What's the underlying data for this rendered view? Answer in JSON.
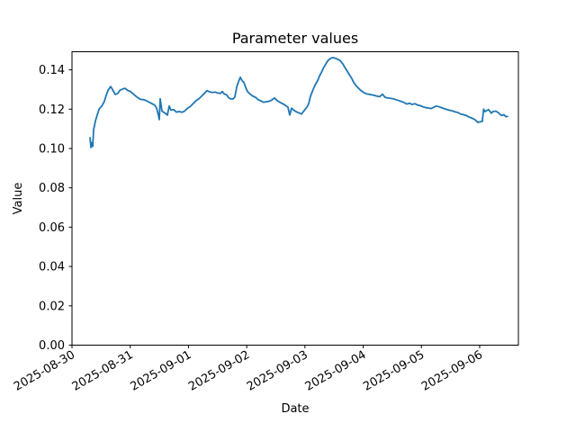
{
  "chart_data": {
    "type": "line",
    "title": "Parameter values",
    "xlabel": "Date",
    "ylabel": "Value",
    "x_tick_labels": [
      "2025-08-30",
      "2025-08-31",
      "2025-09-01",
      "2025-09-02",
      "2025-09-03",
      "2025-09-04",
      "2025-09-05",
      "2025-09-06"
    ],
    "x_tick_positions_days": [
      0,
      1,
      2,
      3,
      4,
      5,
      6,
      7
    ],
    "x_tick_rotation_deg": 30,
    "y_tick_labels": [
      "0.00",
      "0.02",
      "0.04",
      "0.06",
      "0.08",
      "0.10",
      "0.12",
      "0.14"
    ],
    "y_tick_values": [
      0.0,
      0.02,
      0.04,
      0.06,
      0.08,
      0.1,
      0.12,
      0.14
    ],
    "xlim_days": [
      0,
      7.665
    ],
    "ylim": [
      0,
      0.1492
    ],
    "x_unit": "days since 2025-08-30 00:00",
    "grid": false,
    "legend": "none",
    "line_color": "#1f77b4",
    "background_color": "#ffffff",
    "series": [
      {
        "name": "parameter-values",
        "x_days": [
          0.31,
          0.325,
          0.34,
          0.356,
          0.371,
          0.402,
          0.433,
          0.464,
          0.51,
          0.556,
          0.587,
          0.618,
          0.664,
          0.695,
          0.742,
          0.788,
          0.819,
          0.865,
          0.912,
          0.958,
          1.004,
          1.051,
          1.113,
          1.174,
          1.236,
          1.283,
          1.329,
          1.375,
          1.422,
          1.453,
          1.483,
          1.499,
          1.514,
          1.545,
          1.576,
          1.607,
          1.638,
          1.669,
          1.7,
          1.746,
          1.792,
          1.839,
          1.885,
          1.932,
          1.978,
          2.04,
          2.086,
          2.133,
          2.179,
          2.225,
          2.272,
          2.318,
          2.364,
          2.411,
          2.457,
          2.503,
          2.55,
          2.581,
          2.612,
          2.658,
          2.689,
          2.72,
          2.766,
          2.797,
          2.828,
          2.859,
          2.89,
          2.921,
          2.952,
          2.983,
          3.013,
          3.06,
          3.106,
          3.152,
          3.199,
          3.245,
          3.291,
          3.338,
          3.384,
          3.43,
          3.477,
          3.523,
          3.569,
          3.616,
          3.662,
          3.708,
          3.739,
          3.77,
          3.817,
          3.863,
          3.909,
          3.94,
          3.987,
          4.033,
          4.064,
          4.095,
          4.141,
          4.172,
          4.218,
          4.249,
          4.296,
          4.326,
          4.373,
          4.404,
          4.45,
          4.481,
          4.527,
          4.574,
          4.605,
          4.651,
          4.682,
          4.728,
          4.759,
          4.806,
          4.837,
          4.883,
          4.914,
          4.96,
          5.007,
          5.053,
          5.099,
          5.146,
          5.192,
          5.238,
          5.285,
          5.331,
          5.377,
          5.424,
          5.47,
          5.516,
          5.563,
          5.609,
          5.655,
          5.702,
          5.748,
          5.794,
          5.841,
          5.887,
          5.933,
          5.98,
          6.026,
          6.072,
          6.119,
          6.165,
          6.211,
          6.257,
          6.304,
          6.35,
          6.396,
          6.443,
          6.489,
          6.535,
          6.582,
          6.628,
          6.674,
          6.721,
          6.767,
          6.813,
          6.86,
          6.906,
          6.937,
          6.968,
          7.014,
          7.045,
          7.068,
          7.091,
          7.122,
          7.153,
          7.199,
          7.23,
          7.277,
          7.323,
          7.354,
          7.385,
          7.416,
          7.447,
          7.478
        ],
        "values": [
          0.1055,
          0.1005,
          0.103,
          0.101,
          0.1095,
          0.114,
          0.117,
          0.12,
          0.1215,
          0.124,
          0.127,
          0.1295,
          0.1315,
          0.13,
          0.1275,
          0.128,
          0.1295,
          0.1302,
          0.1306,
          0.1295,
          0.129,
          0.1278,
          0.1262,
          0.125,
          0.1248,
          0.1242,
          0.1235,
          0.1228,
          0.122,
          0.1205,
          0.117,
          0.1147,
          0.1253,
          0.119,
          0.1184,
          0.1178,
          0.117,
          0.1216,
          0.1195,
          0.1198,
          0.1185,
          0.1188,
          0.1184,
          0.119,
          0.1203,
          0.1216,
          0.123,
          0.1244,
          0.1253,
          0.1266,
          0.128,
          0.1294,
          0.1288,
          0.1285,
          0.1287,
          0.1282,
          0.128,
          0.129,
          0.1278,
          0.1272,
          0.1258,
          0.1253,
          0.1252,
          0.1262,
          0.1312,
          0.134,
          0.1362,
          0.1345,
          0.1336,
          0.131,
          0.129,
          0.1276,
          0.1266,
          0.126,
          0.1248,
          0.1242,
          0.1235,
          0.1238,
          0.124,
          0.1246,
          0.1257,
          0.1244,
          0.1235,
          0.1228,
          0.122,
          0.121,
          0.117,
          0.1205,
          0.1193,
          0.1185,
          0.118,
          0.1175,
          0.1193,
          0.121,
          0.1228,
          0.1266,
          0.13,
          0.1322,
          0.1345,
          0.1368,
          0.1395,
          0.1414,
          0.1437,
          0.145,
          0.146,
          0.1462,
          0.1458,
          0.1452,
          0.1447,
          0.143,
          0.1414,
          0.1392,
          0.1377,
          0.1355,
          0.1336,
          0.1318,
          0.1308,
          0.1295,
          0.1285,
          0.1278,
          0.1276,
          0.1273,
          0.127,
          0.1266,
          0.1264,
          0.1276,
          0.126,
          0.1257,
          0.1255,
          0.1253,
          0.1248,
          0.1244,
          0.1239,
          0.1234,
          0.1226,
          0.123,
          0.1224,
          0.1228,
          0.1221,
          0.1218,
          0.1212,
          0.1208,
          0.1206,
          0.1203,
          0.121,
          0.1216,
          0.1212,
          0.1207,
          0.1202,
          0.1198,
          0.1194,
          0.1191,
          0.1186,
          0.1183,
          0.1175,
          0.1172,
          0.1168,
          0.1161,
          0.1155,
          0.1149,
          0.1142,
          0.1133,
          0.1136,
          0.1138,
          0.12,
          0.1188,
          0.1193,
          0.1198,
          0.118,
          0.1188,
          0.119,
          0.1182,
          0.1172,
          0.1168,
          0.1172,
          0.1162,
          0.1163
        ]
      }
    ]
  }
}
